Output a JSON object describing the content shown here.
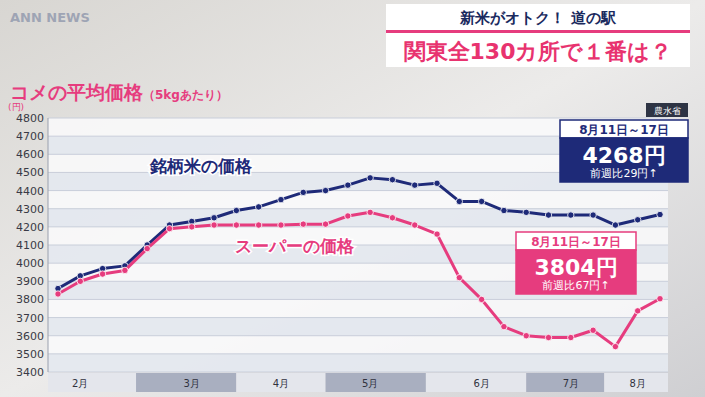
{
  "header": {
    "logo": "ANN NEWS",
    "kicker": "新米がオトク！ 道の駅",
    "headline": "関東全130カ所で１番は？"
  },
  "chart_data": {
    "type": "line",
    "title": "コメの平均価格",
    "subtitle": "（5kgあたり）",
    "y_label": "(円)",
    "source": "農水省",
    "categories": [
      null,
      "2月",
      null,
      null,
      null,
      null,
      "3月",
      null,
      null,
      null,
      "4月",
      null,
      null,
      null,
      "5月",
      null,
      null,
      null,
      null,
      "6月",
      null,
      null,
      null,
      "7月",
      null,
      null,
      "8月",
      null
    ],
    "series": [
      {
        "name": "銘柄米の価格",
        "color": "#1e2a78",
        "marker": "circle",
        "values": [
          3860,
          3930,
          3970,
          3985,
          4100,
          4210,
          4230,
          4250,
          4290,
          4310,
          4350,
          4390,
          4400,
          4430,
          4470,
          4460,
          4430,
          4440,
          4340,
          4340,
          4290,
          4280,
          4265,
          4265,
          4265,
          4210,
          4239,
          4268
        ]
      },
      {
        "name": "スーパーの価格",
        "color": "#e63c7e",
        "marker": "circle",
        "values": [
          3830,
          3900,
          3940,
          3960,
          4080,
          4190,
          4200,
          4210,
          4210,
          4210,
          4210,
          4215,
          4215,
          4260,
          4280,
          4250,
          4210,
          4160,
          3920,
          3800,
          3650,
          3600,
          3590,
          3590,
          3630,
          3540,
          3737,
          3804
        ]
      }
    ],
    "ylim": [
      3400,
      4800
    ],
    "yticks": [
      3400,
      3500,
      3600,
      3700,
      3800,
      3900,
      4000,
      4100,
      4200,
      4300,
      4400,
      4500,
      4600,
      4700,
      4800
    ],
    "grid": true,
    "annotations": [
      {
        "period": "8月11日～17日",
        "price": "4268円",
        "change": "前週比29円↑"
      },
      {
        "period": "8月11日～17日",
        "price": "3804円",
        "change": "前週比67円↑"
      }
    ]
  }
}
